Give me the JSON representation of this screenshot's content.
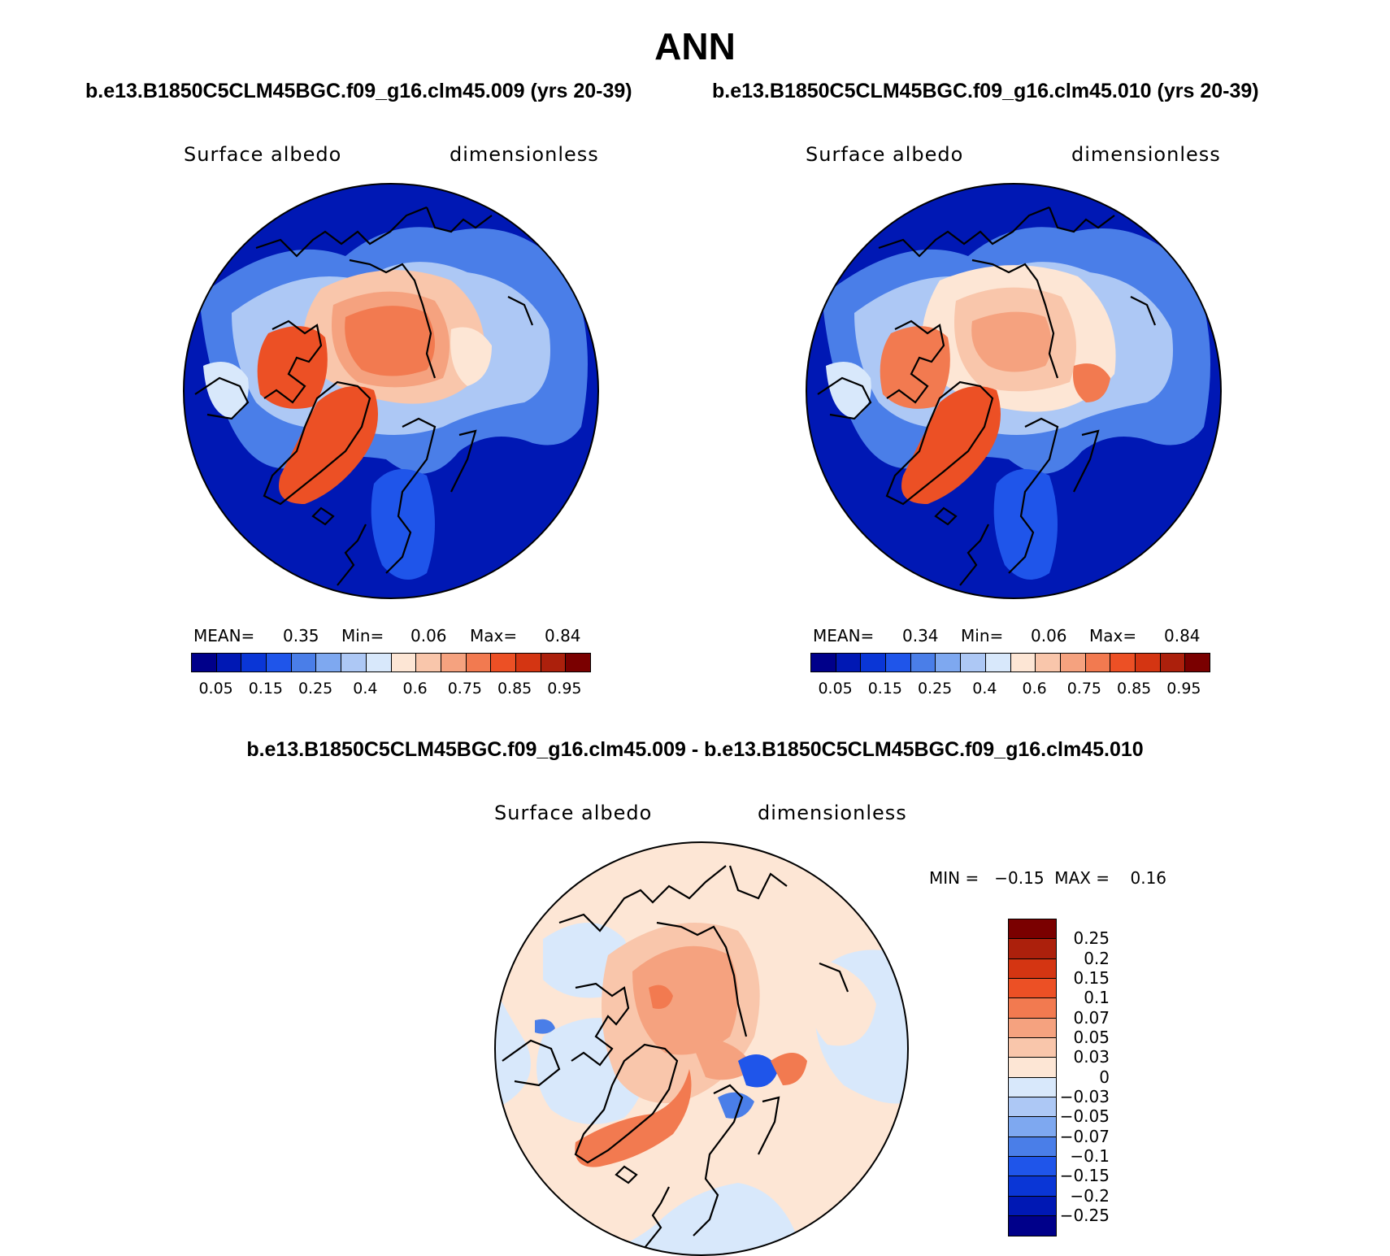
{
  "title": "ANN",
  "top_subtitles": {
    "left": "b.e13.B1850C5CLM45BGC.f09_g16.clm45.009 (yrs 20-39)",
    "right": "b.e13.B1850C5CLM45BGC.f09_g16.clm45.010 (yrs 20-39)"
  },
  "panels": [
    {
      "variable": "Surface albedo",
      "units": "dimensionless",
      "stats": {
        "mean_label": "MEAN=",
        "mean": "0.35",
        "min_label": "Min=",
        "min": "0.06",
        "max_label": "Max=",
        "max": "0.84"
      }
    },
    {
      "variable": "Surface albedo",
      "units": "dimensionless",
      "stats": {
        "mean_label": "MEAN=",
        "mean": "0.34",
        "min_label": "Min=",
        "min": "0.06",
        "max_label": "Max=",
        "max": "0.84"
      }
    }
  ],
  "diff_panel": {
    "subtitle": "b.e13.B1850C5CLM45BGC.f09_g16.clm45.009 - b.e13.B1850C5CLM45BGC.f09_g16.clm45.010",
    "variable": "Surface albedo",
    "units": "dimensionless",
    "minmax": "MIN =   −0.15  MAX =    0.16"
  },
  "abs_colorbar": {
    "colors": [
      "#00008a",
      "#0018b4",
      "#0a36d6",
      "#1f55ea",
      "#4a7ee8",
      "#7ea8f0",
      "#adc8f5",
      "#d8e8fb",
      "#fde6d5",
      "#f9c6ab",
      "#f5a27f",
      "#f27a50",
      "#ec5025",
      "#d43512",
      "#ac200c",
      "#7a0000"
    ],
    "labels": [
      "0.05",
      "0.15",
      "0.25",
      "0.4",
      "0.6",
      "0.75",
      "0.85",
      "0.95"
    ]
  },
  "diff_colorbar": {
    "colors": [
      "#7a0000",
      "#ac200c",
      "#d43512",
      "#ec5025",
      "#f27a50",
      "#f5a27f",
      "#f9c6ab",
      "#fde6d5",
      "#d8e8fb",
      "#adc8f5",
      "#7ea8f0",
      "#4a7ee8",
      "#1f55ea",
      "#0a36d6",
      "#0018b4",
      "#00008a"
    ],
    "labels": [
      "0.25",
      "0.2",
      "0.15",
      "0.1",
      "0.07",
      "0.05",
      "0.03",
      "0",
      "−0.03",
      "−0.05",
      "−0.07",
      "−0.1",
      "−0.15",
      "−0.2",
      "−0.25"
    ]
  }
}
